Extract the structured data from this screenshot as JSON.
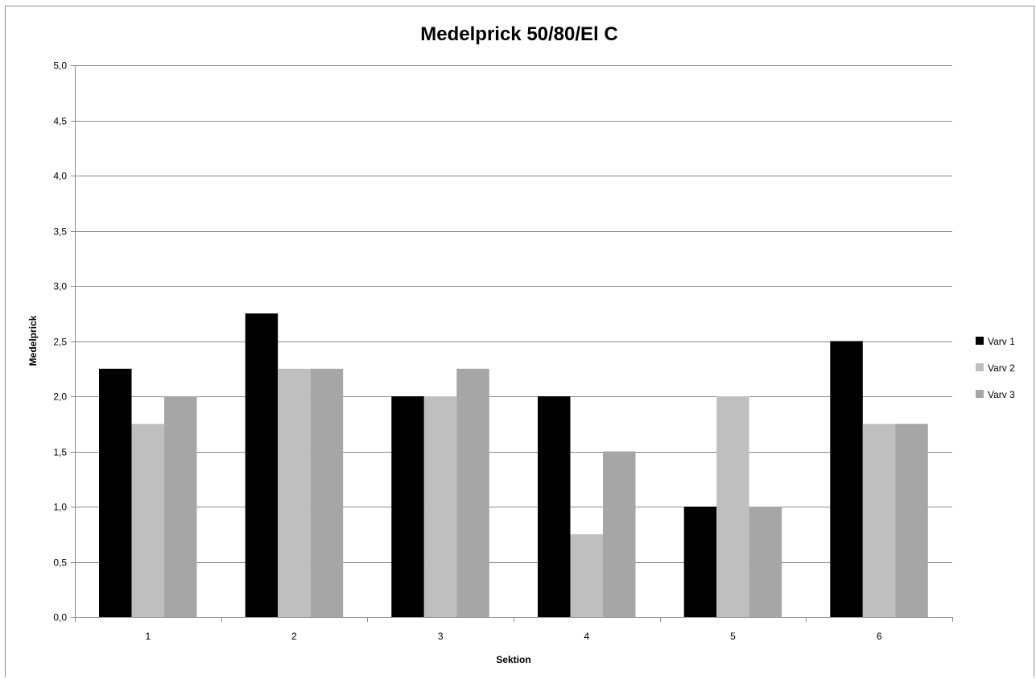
{
  "chart_data": {
    "type": "bar",
    "title": "Medelprick 50/80/El C",
    "xlabel": "Sektion",
    "ylabel": "Medelprick",
    "categories": [
      "1",
      "2",
      "3",
      "4",
      "5",
      "6"
    ],
    "series": [
      {
        "name": "Varv 1",
        "color": "#000000",
        "values": [
          2.25,
          2.75,
          2.0,
          2.0,
          1.0,
          2.5
        ]
      },
      {
        "name": "Varv 2",
        "color": "#bfbfbf",
        "values": [
          1.75,
          2.25,
          2.0,
          0.75,
          2.0,
          1.75
        ]
      },
      {
        "name": "Varv 3",
        "color": "#a6a6a6",
        "values": [
          2.0,
          2.25,
          2.25,
          1.5,
          1.0,
          1.75
        ]
      }
    ],
    "ylim": [
      0,
      5
    ],
    "yticks": [
      "0,0",
      "0,5",
      "1,0",
      "1,5",
      "2,0",
      "2,5",
      "3,0",
      "3,5",
      "4,0",
      "4,5",
      "5,0"
    ],
    "grid": true,
    "legend": "right"
  }
}
